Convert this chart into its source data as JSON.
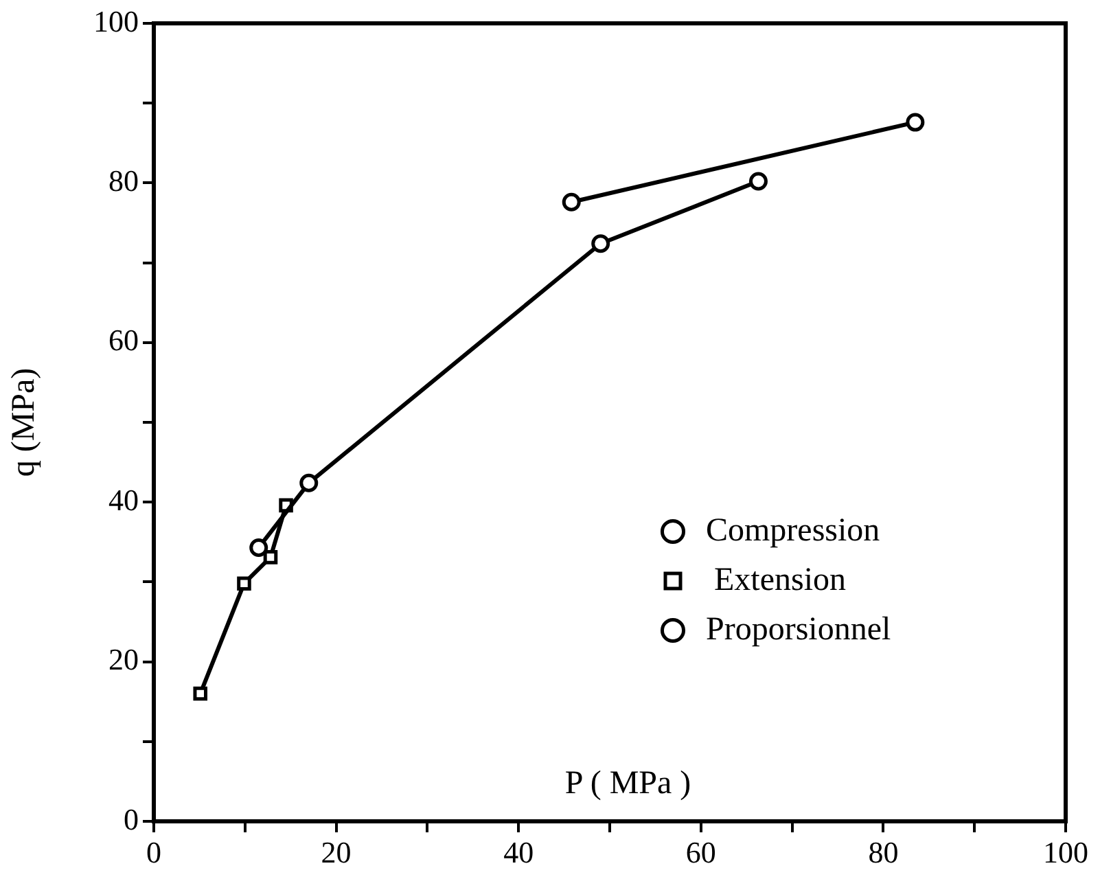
{
  "chart_data": {
    "type": "line",
    "xlabel": "P ( MPa )",
    "ylabel": "q (MPa)",
    "xlim": [
      0,
      100
    ],
    "xticks": [
      0,
      {
        "value": 10,
        "label": null
      },
      20,
      {
        "value": 30,
        "label": null
      },
      40,
      {
        "value": 50,
        "label": null
      },
      60,
      {
        "value": 70,
        "label": null
      },
      80,
      {
        "value": 90,
        "label": null
      },
      100
    ],
    "ylim": [
      0,
      100
    ],
    "yticks": [
      0,
      {
        "value": 10,
        "label": null
      },
      20,
      {
        "value": 30,
        "label": null
      },
      40,
      {
        "value": 50,
        "label": null
      },
      60,
      {
        "value": 70,
        "label": null
      },
      80,
      {
        "value": 90,
        "label": null
      },
      100
    ],
    "grid": false,
    "legend": "bottom right",
    "line_style": "solid",
    "series": [
      {
        "name": "Compression",
        "color": "#000000",
        "marker": "circle",
        "x": [
          11.5,
          17,
          49,
          66.3
        ],
        "values": [
          34.3,
          42.4,
          72.4,
          80.2
        ]
      },
      {
        "name": " Extension",
        "color": "#000000",
        "marker": "square",
        "x": [
          5.1,
          9.9,
          12.8,
          14.5
        ],
        "values": [
          16,
          29.8,
          33.1,
          39.6
        ]
      },
      {
        "name": "Proporsionnel",
        "color": "#000000",
        "marker": "circle",
        "x": [
          45.8,
          83.5
        ],
        "values": [
          77.6,
          87.6
        ]
      }
    ]
  }
}
